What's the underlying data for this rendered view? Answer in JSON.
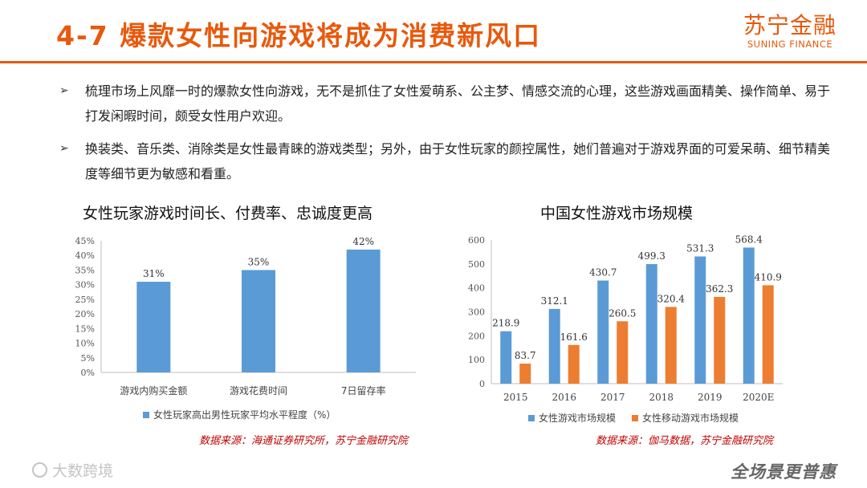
{
  "header": {
    "title": "4-7 爆款女性向游戏将成为消费新风口",
    "logo_cn": "苏宁金融",
    "logo_en": "SUNING FINANCE"
  },
  "bullets": [
    "梳理市场上风靡一时的爆款女性向游戏，无不是抓住了女性爱萌系、公主梦、情感交流的心理，这些游戏画面精美、操作简单、易于打发闲暇时间，颇受女性用户欢迎。",
    "换装类、音乐类、消除类是女性最青睐的游戏类型；另外，由于女性玩家的颜控属性，她们普遍对于游戏界面的可爱呆萌、细节精美度等细节更为敏感和看重。"
  ],
  "colors": {
    "accent": "#E8590C",
    "blue": "#5B9BD5",
    "orange": "#ED7D31",
    "source": "#C00000"
  },
  "chart_data": [
    {
      "type": "bar",
      "title": "女性玩家游戏时间长、付费率、忠诚度更高",
      "categories": [
        "游戏内购买金额",
        "游戏花费时间",
        "7日留存率"
      ],
      "series": [
        {
          "name": "女性玩家高出男性玩家平均水平程度（%）",
          "values": [
            31,
            35,
            42
          ]
        }
      ],
      "data_labels": [
        "31%",
        "35%",
        "42%"
      ],
      "y_ticks": [
        "0%",
        "5%",
        "10%",
        "15%",
        "20%",
        "25%",
        "30%",
        "35%",
        "40%",
        "45%"
      ],
      "ylim": [
        0,
        45
      ],
      "grid": false,
      "legend": "bottom",
      "source": "数据来源：海通证券研究所，苏宁金融研究院"
    },
    {
      "type": "bar",
      "title": "中国女性游戏市场规模",
      "categories": [
        "2015",
        "2016",
        "2017",
        "2018",
        "2019",
        "2020E"
      ],
      "series": [
        {
          "name": "女性游戏市场规模",
          "values": [
            218.9,
            312.1,
            430.7,
            499.3,
            531.3,
            568.4
          ]
        },
        {
          "name": "女性移动游戏市场规模",
          "values": [
            83.7,
            161.6,
            260.5,
            320.4,
            362.3,
            410.9
          ]
        }
      ],
      "y_ticks": [
        "0",
        "100",
        "200",
        "300",
        "400",
        "500",
        "600"
      ],
      "ylim": [
        0,
        600
      ],
      "grid": false,
      "legend": "bottom",
      "source": "数据来源：伽马数据，苏宁金融研究院"
    }
  ],
  "footer": {
    "watermark": "大数跨境",
    "slogan": "全场景更普惠"
  }
}
